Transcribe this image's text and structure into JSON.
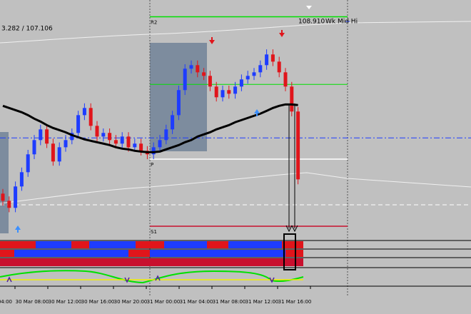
{
  "chart_data": {
    "type": "candlestick",
    "header": "3.282 / 107.106",
    "x_labels": [
      "04:00",
      "30 Mar 08:00",
      "30 Mar 12:00",
      "30 Mar 16:00",
      "30 Mar 20:00",
      "31 Mar 00:00",
      "31 Mar 04:00",
      "31 Mar 08:00",
      "31 Mar 12:00",
      "31 Mar 16:00"
    ],
    "ylim": [
      106.61,
      109.14
    ],
    "up_color": "#1e3cff",
    "down_color": "#e0151b",
    "open": [
      107.06,
      106.983,
      106.907,
      107.137,
      107.29,
      107.482,
      107.635,
      107.75,
      107.597,
      107.405,
      107.558,
      107.635,
      107.712,
      107.903,
      107.98,
      107.788,
      107.673,
      107.712,
      107.635,
      107.597,
      107.673,
      107.558,
      107.597,
      107.52,
      107.482,
      107.558,
      107.635,
      107.75,
      107.903,
      108.172,
      108.402,
      108.44,
      108.363,
      108.325,
      108.21,
      108.095,
      108.172,
      108.133,
      108.21,
      108.287,
      108.325,
      108.363,
      108.44,
      108.555,
      108.478,
      108.363,
      108.21,
      107.942
    ],
    "high": [
      107.11,
      107.03,
      107.19,
      107.34,
      107.53,
      107.69,
      107.8,
      107.8,
      107.65,
      107.61,
      107.69,
      107.76,
      107.95,
      108.03,
      108.03,
      107.84,
      107.76,
      107.76,
      107.69,
      107.72,
      107.72,
      107.65,
      107.65,
      107.57,
      107.61,
      107.69,
      107.8,
      107.95,
      108.22,
      108.45,
      108.49,
      108.49,
      108.41,
      108.38,
      108.26,
      108.22,
      108.22,
      108.26,
      108.34,
      108.38,
      108.41,
      108.49,
      108.61,
      108.61,
      108.53,
      108.41,
      108.26,
      107.99
    ],
    "low": [
      106.93,
      106.86,
      106.86,
      107.09,
      107.24,
      107.43,
      107.58,
      107.55,
      107.36,
      107.36,
      107.51,
      107.59,
      107.66,
      107.85,
      107.74,
      107.62,
      107.62,
      107.59,
      107.55,
      107.55,
      107.51,
      107.51,
      107.47,
      107.43,
      107.43,
      107.51,
      107.59,
      107.7,
      107.85,
      108.12,
      108.35,
      108.31,
      108.28,
      108.16,
      108.05,
      108.05,
      108.08,
      108.08,
      108.16,
      108.24,
      108.28,
      108.31,
      108.39,
      108.43,
      108.31,
      108.16,
      107.89,
      107.16
    ],
    "close": [
      106.983,
      106.907,
      107.137,
      107.29,
      107.482,
      107.635,
      107.75,
      107.597,
      107.405,
      107.558,
      107.635,
      107.712,
      107.903,
      107.98,
      107.788,
      107.673,
      107.712,
      107.635,
      107.597,
      107.673,
      107.558,
      107.597,
      107.52,
      107.482,
      107.558,
      107.635,
      107.75,
      107.903,
      108.172,
      108.402,
      108.44,
      108.363,
      108.325,
      108.21,
      108.095,
      108.172,
      108.133,
      108.21,
      108.287,
      108.325,
      108.363,
      108.44,
      108.555,
      108.478,
      108.363,
      108.21,
      107.942,
      107.213
    ],
    "ma": [
      108.003,
      107.98,
      107.957,
      107.934,
      107.903,
      107.865,
      107.834,
      107.796,
      107.765,
      107.742,
      107.719,
      107.689,
      107.666,
      107.643,
      107.627,
      107.612,
      107.597,
      107.581,
      107.558,
      107.543,
      107.535,
      107.52,
      107.512,
      107.505,
      107.505,
      107.512,
      107.535,
      107.558,
      107.581,
      107.612,
      107.635,
      107.673,
      107.696,
      107.719,
      107.75,
      107.773,
      107.796,
      107.827,
      107.85,
      107.873,
      107.896,
      107.919,
      107.949,
      107.98,
      108.003,
      108.018,
      108.018,
      108.011
    ],
    "ma_color": "#000000",
    "levels": [
      {
        "label": "R2",
        "value": 108.96,
        "color": "#00e000"
      },
      {
        "label": "P",
        "value": 107.43,
        "color": "#ffffff"
      },
      {
        "label": "S1",
        "value": 106.71,
        "color": "#c8102e"
      }
    ],
    "lines": [
      {
        "value": 108.233,
        "color": "#00e000"
      },
      {
        "value": 107.658,
        "color": "#1e3cff"
      },
      {
        "value": 106.94,
        "color": "#ffffff"
      }
    ],
    "wk_mid_hi": {
      "value": 108.91,
      "value_label": "108.910",
      "label": "Wk Mid Hi",
      "color": "#1e3cff"
    }
  }
}
